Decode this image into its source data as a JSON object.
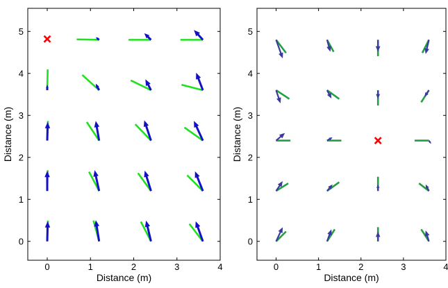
{
  "chart_data": [
    {
      "type": "vector-field",
      "xlabel": "Distance (m)",
      "ylabel": "Distance (m)",
      "xlim": [
        -0.45,
        4
      ],
      "ylim": [
        -0.45,
        5.55
      ],
      "xticks": [
        0,
        1,
        2,
        3,
        4
      ],
      "yticks": [
        0,
        1,
        2,
        3,
        4,
        5
      ],
      "grid": false,
      "source_marker": {
        "symbol": "x",
        "x": 0.0,
        "y": 4.82,
        "color": "#ff0000"
      },
      "colors": {
        "blue_arrow": "#1212c4",
        "green_line": "#20e020"
      },
      "vectors": [
        {
          "x": 0.0,
          "y": 0.0,
          "blue": [
            0.02,
            0.92
          ],
          "green": [
            0.03,
            0.95
          ]
        },
        {
          "x": 1.2,
          "y": 0.0,
          "blue": [
            -0.15,
            0.97
          ],
          "green": [
            -0.25,
            0.95
          ]
        },
        {
          "x": 2.4,
          "y": 0.0,
          "blue": [
            -0.22,
            0.95
          ],
          "green": [
            -0.45,
            0.9
          ]
        },
        {
          "x": 3.6,
          "y": 0.0,
          "blue": [
            -0.32,
            0.92
          ],
          "green": [
            -0.6,
            0.8
          ]
        },
        {
          "x": 0.0,
          "y": 1.2,
          "blue": [
            0.0,
            0.92
          ],
          "green": [
            0.02,
            0.95
          ]
        },
        {
          "x": 1.2,
          "y": 1.2,
          "blue": [
            -0.2,
            0.95
          ],
          "green": [
            -0.45,
            0.88
          ]
        },
        {
          "x": 2.4,
          "y": 1.2,
          "blue": [
            -0.28,
            0.93
          ],
          "green": [
            -0.58,
            0.82
          ]
        },
        {
          "x": 3.6,
          "y": 1.2,
          "blue": [
            -0.35,
            0.9
          ],
          "green": [
            -0.7,
            0.72
          ]
        },
        {
          "x": 0.0,
          "y": 2.4,
          "blue": [
            0.02,
            0.85
          ],
          "green": [
            0.03,
            0.9
          ]
        },
        {
          "x": 1.2,
          "y": 2.4,
          "blue": [
            -0.15,
            0.9
          ],
          "green": [
            -0.55,
            0.85
          ]
        },
        {
          "x": 2.4,
          "y": 2.4,
          "blue": [
            -0.3,
            0.93
          ],
          "green": [
            -0.7,
            0.75
          ]
        },
        {
          "x": 3.6,
          "y": 2.4,
          "blue": [
            -0.4,
            0.9
          ],
          "green": [
            -0.82,
            0.6
          ]
        },
        {
          "x": 0.0,
          "y": 3.6,
          "blue": [
            0.0,
            0.25
          ],
          "green": [
            0.02,
            0.95
          ]
        },
        {
          "x": 1.2,
          "y": 3.6,
          "blue": [
            -0.15,
            0.3
          ],
          "green": [
            -0.75,
            0.7
          ]
        },
        {
          "x": 2.4,
          "y": 3.6,
          "blue": [
            -0.25,
            0.5
          ],
          "green": [
            -0.9,
            0.45
          ]
        },
        {
          "x": 3.6,
          "y": 3.6,
          "blue": [
            -0.3,
            0.8
          ],
          "green": [
            -0.95,
            0.25
          ]
        },
        {
          "x": 1.2,
          "y": 4.8,
          "blue": [
            -0.15,
            0.12
          ],
          "green": [
            -1.0,
            0.02
          ]
        },
        {
          "x": 2.4,
          "y": 4.8,
          "blue": [
            -0.3,
            0.3
          ],
          "green": [
            -1.0,
            0.0
          ]
        },
        {
          "x": 3.6,
          "y": 4.8,
          "blue": [
            -0.4,
            0.45
          ],
          "green": [
            -1.0,
            0.0
          ]
        }
      ]
    },
    {
      "type": "vector-field",
      "xlabel": "Distance (m)",
      "ylabel": "Distance (m)",
      "xlim": [
        -0.45,
        4
      ],
      "ylim": [
        -0.45,
        5.55
      ],
      "xticks": [
        0,
        1,
        2,
        3,
        4
      ],
      "yticks": [
        0,
        1,
        2,
        3,
        4,
        5
      ],
      "grid": false,
      "source_marker": {
        "symbol": "x",
        "x": 2.4,
        "y": 2.4,
        "color": "#ff0000"
      },
      "colors": {
        "blue_arrow": "#3a3a9e",
        "green_line": "#20a040"
      },
      "vectors": [
        {
          "x": 0.0,
          "y": 0.0,
          "blue": [
            0.3,
            0.65
          ],
          "green": [
            0.45,
            0.45
          ]
        },
        {
          "x": 1.2,
          "y": 0.0,
          "blue": [
            0.2,
            0.55
          ],
          "green": [
            0.35,
            0.55
          ]
        },
        {
          "x": 2.4,
          "y": 0.0,
          "blue": [
            0.0,
            0.45
          ],
          "green": [
            0.0,
            0.65
          ]
        },
        {
          "x": 3.6,
          "y": 0.0,
          "blue": [
            -0.15,
            0.5
          ],
          "green": [
            -0.35,
            0.55
          ]
        },
        {
          "x": 0.0,
          "y": 1.2,
          "blue": [
            0.3,
            0.45
          ],
          "green": [
            0.55,
            0.35
          ]
        },
        {
          "x": 1.2,
          "y": 1.2,
          "blue": [
            0.25,
            0.3
          ],
          "green": [
            0.55,
            0.4
          ]
        },
        {
          "x": 2.4,
          "y": 1.2,
          "blue": [
            0.0,
            0.3
          ],
          "green": [
            0.0,
            0.65
          ]
        },
        {
          "x": 3.6,
          "y": 1.2,
          "blue": [
            -0.15,
            0.3
          ],
          "green": [
            -0.45,
            0.35
          ]
        },
        {
          "x": 0.0,
          "y": 2.4,
          "blue": [
            0.4,
            0.35
          ],
          "green": [
            0.65,
            0.0
          ]
        },
        {
          "x": 1.2,
          "y": 2.4,
          "blue": [
            0.25,
            0.15
          ],
          "green": [
            0.65,
            0.0
          ]
        },
        {
          "x": 3.6,
          "y": 2.4,
          "blue": [
            0.1,
            -0.15
          ],
          "green": [
            -0.65,
            0.0
          ]
        },
        {
          "x": 0.0,
          "y": 3.6,
          "blue": [
            0.2,
            -0.6
          ],
          "green": [
            0.6,
            -0.4
          ]
        },
        {
          "x": 1.2,
          "y": 3.6,
          "blue": [
            0.2,
            -0.38
          ],
          "green": [
            0.55,
            -0.4
          ]
        },
        {
          "x": 2.4,
          "y": 3.6,
          "blue": [
            0.0,
            -0.4
          ],
          "green": [
            0.0,
            -0.7
          ]
        },
        {
          "x": 3.6,
          "y": 3.6,
          "blue": [
            -0.2,
            -0.3
          ],
          "green": [
            -0.35,
            -0.55
          ]
        },
        {
          "x": 0.0,
          "y": 4.8,
          "blue": [
            0.3,
            -0.85
          ],
          "green": [
            0.45,
            -0.6
          ]
        },
        {
          "x": 1.2,
          "y": 4.8,
          "blue": [
            0.15,
            -0.55
          ],
          "green": [
            0.3,
            -0.55
          ]
        },
        {
          "x": 2.4,
          "y": 4.8,
          "blue": [
            0.0,
            -0.55
          ],
          "green": [
            0.0,
            -0.75
          ]
        },
        {
          "x": 3.6,
          "y": 4.8,
          "blue": [
            -0.15,
            -0.65
          ],
          "green": [
            -0.3,
            -0.6
          ]
        }
      ]
    }
  ]
}
